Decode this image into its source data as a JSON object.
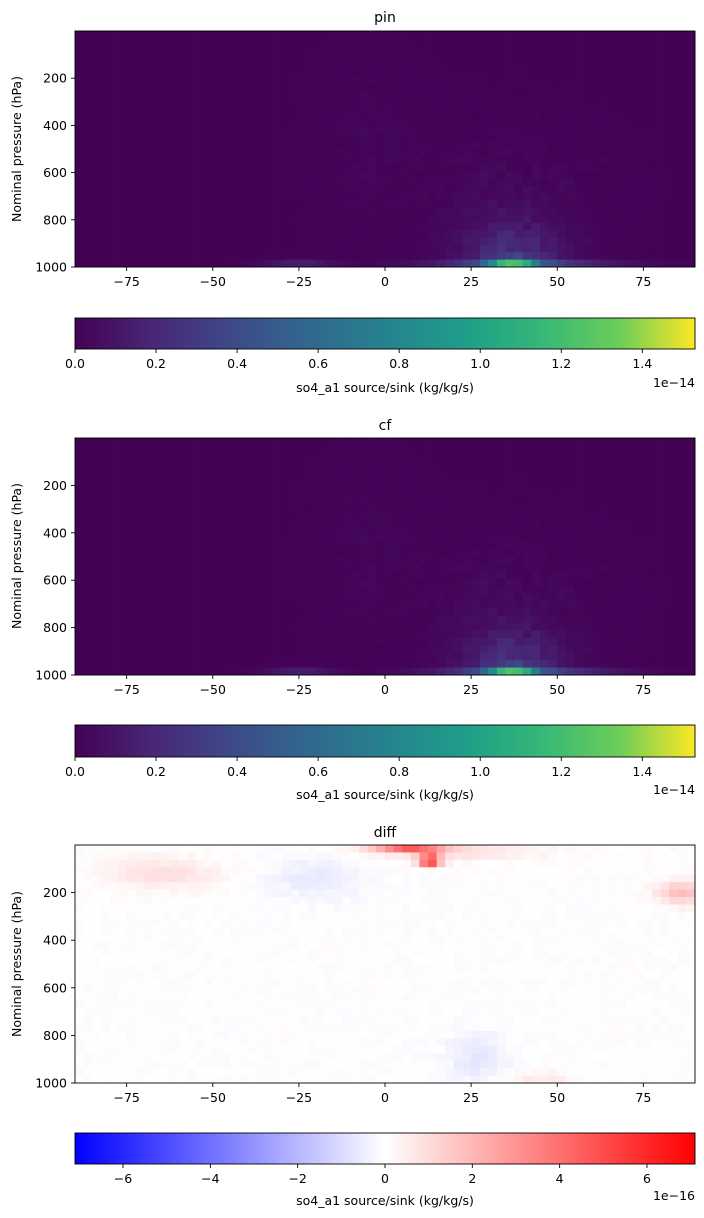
{
  "figure": {
    "panels": [
      {
        "title": "pin",
        "ylabel": "Nominal pressure (hPa)",
        "cmap": "viridis",
        "colorbar": {
          "label": "so4_a1 source/sink (kg/kg/s)",
          "offset": "1e−14"
        }
      },
      {
        "title": "cf",
        "ylabel": "Nominal pressure (hPa)",
        "cmap": "viridis",
        "colorbar": {
          "label": "so4_a1 source/sink (kg/kg/s)",
          "offset": "1e−14"
        }
      },
      {
        "title": "diff",
        "ylabel": "Nominal pressure (hPa)",
        "cmap": "bwr",
        "colorbar": {
          "label": "so4_a1 source/sink (kg/kg/s)",
          "offset": "1e−16"
        }
      }
    ]
  },
  "chart_data": [
    {
      "type": "heatmap",
      "title": "pin",
      "xlabel": "",
      "ylabel": "Nominal pressure (hPa)",
      "xlim": [
        -90,
        90
      ],
      "ylim": [
        1000,
        0
      ],
      "xticks": [
        -75,
        -50,
        -25,
        0,
        25,
        50,
        75
      ],
      "yticks": [
        200,
        400,
        600,
        800,
        1000
      ],
      "colormap": "viridis",
      "clim": [
        0,
        1.53e-14
      ],
      "colorbar": {
        "label": "so4_a1 source/sink (kg/kg/s)",
        "ticks": [
          "0.0",
          "0.2",
          "0.4",
          "0.6",
          "0.8",
          "1.0",
          "1.2",
          "1.4"
        ],
        "tick_values": [
          0,
          0.2,
          0.4,
          0.6,
          0.8,
          1.0,
          1.2,
          1.4
        ],
        "range": [
          0,
          1.53
        ],
        "offset_text": "1e−14"
      },
      "features": [
        {
          "lat_center": 37,
          "lat_halfwidth": 10,
          "pressure": 975,
          "value": 1.5e-14
        },
        {
          "lat_center": 45,
          "lat_halfwidth": 25,
          "pressure": 980,
          "value": 3.5e-15
        },
        {
          "lat_center": -25,
          "lat_halfwidth": 10,
          "pressure": 980,
          "value": 1.5e-15
        },
        {
          "lat_center": 37,
          "lat_halfwidth": 18,
          "pressure_top": 700,
          "pressure_bottom": 960,
          "value": 2.5e-15
        }
      ]
    },
    {
      "type": "heatmap",
      "title": "cf",
      "xlabel": "",
      "ylabel": "Nominal pressure (hPa)",
      "xlim": [
        -90,
        90
      ],
      "ylim": [
        1000,
        0
      ],
      "xticks": [
        -75,
        -50,
        -25,
        0,
        25,
        50,
        75
      ],
      "yticks": [
        200,
        400,
        600,
        800,
        1000
      ],
      "colormap": "viridis",
      "clim": [
        0,
        1.53e-14
      ],
      "colorbar": {
        "label": "so4_a1 source/sink (kg/kg/s)",
        "ticks": [
          "0.0",
          "0.2",
          "0.4",
          "0.6",
          "0.8",
          "1.0",
          "1.2",
          "1.4"
        ],
        "tick_values": [
          0,
          0.2,
          0.4,
          0.6,
          0.8,
          1.0,
          1.2,
          1.4
        ],
        "range": [
          0,
          1.53
        ],
        "offset_text": "1e−14"
      },
      "features": [
        {
          "lat_center": 37,
          "lat_halfwidth": 10,
          "pressure": 975,
          "value": 1.5e-14
        },
        {
          "lat_center": 45,
          "lat_halfwidth": 25,
          "pressure": 980,
          "value": 3.5e-15
        },
        {
          "lat_center": -25,
          "lat_halfwidth": 10,
          "pressure": 980,
          "value": 1.5e-15
        },
        {
          "lat_center": 37,
          "lat_halfwidth": 18,
          "pressure_top": 700,
          "pressure_bottom": 960,
          "value": 2.5e-15
        }
      ]
    },
    {
      "type": "heatmap",
      "title": "diff",
      "xlabel": "",
      "ylabel": "Nominal pressure (hPa)",
      "xlim": [
        -90,
        90
      ],
      "ylim": [
        1000,
        0
      ],
      "xticks": [
        -75,
        -50,
        -25,
        0,
        25,
        50,
        75
      ],
      "yticks": [
        200,
        400,
        600,
        800,
        1000
      ],
      "colormap": "bwr",
      "clim": [
        -7.1e-16,
        7.1e-16
      ],
      "colorbar": {
        "label": "so4_a1 source/sink (kg/kg/s)",
        "ticks": [
          "−6",
          "−4",
          "−2",
          "0",
          "2",
          "4",
          "6"
        ],
        "tick_values": [
          -6,
          -4,
          -2,
          0,
          2,
          4,
          6
        ],
        "range": [
          -7.1,
          7.1
        ],
        "offset_text": "1e−16"
      },
      "features": [
        {
          "lat": 13,
          "pressure": 70,
          "value": 7e-16
        },
        {
          "lat_center": 5,
          "lat_halfwidth": 15,
          "pressure": 20,
          "value": 5e-16
        },
        {
          "lat_center": 85,
          "lat_halfwidth": 10,
          "pressure": 200,
          "value": 2e-16
        },
        {
          "lat_center": -65,
          "lat_halfwidth": 15,
          "pressure": 120,
          "value": 1e-16
        },
        {
          "lat_center": 28,
          "lat_halfwidth": 8,
          "pressure_top": 800,
          "pressure_bottom": 1000,
          "value": -1e-16
        },
        {
          "lat_center": 45,
          "lat_halfwidth": 10,
          "pressure": 990,
          "value": 8e-17
        }
      ]
    }
  ]
}
